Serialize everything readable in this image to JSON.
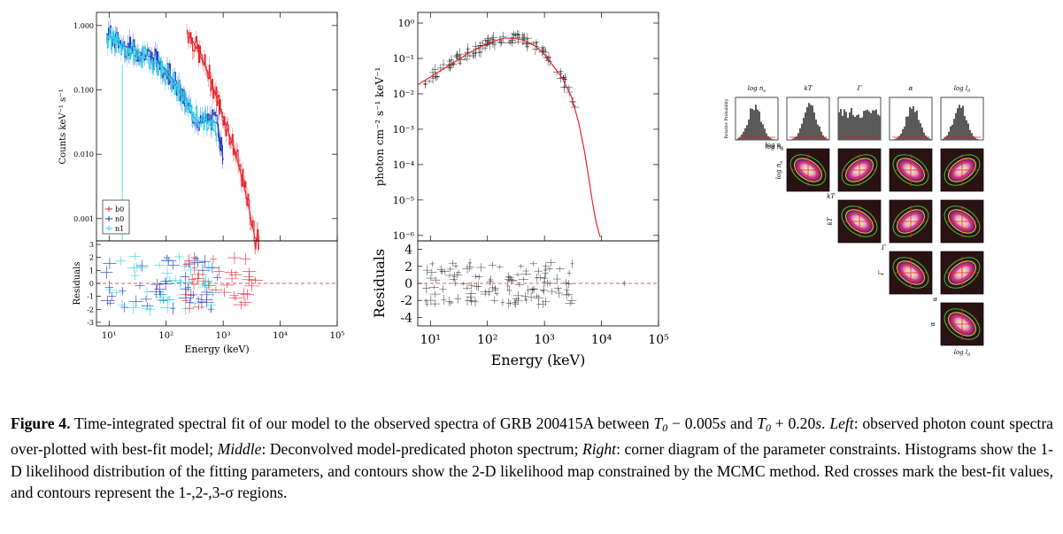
{
  "caption": {
    "label": "Figure 4.",
    "lead": "Time-integrated spectral fit of our model to the observed spectra of GRB 200415A between ",
    "t0a": "T",
    "t0a_sub": "0",
    "t0a_rest": " − 0.005",
    "s1": "s",
    "and": " and ",
    "t0b": "T",
    "t0b_sub": "0",
    "t0b_rest": " + 0.20",
    "s2": "s",
    "period": ".",
    "left_label": "Left",
    "left_text": ": observed photon count spectra over-plotted with best-fit model; ",
    "middle_label": "Middle",
    "middle_text": ": Deconvolved model-predicated photon spectrum; ",
    "right_label": "Right",
    "right_text": ": corner diagram of the parameter constraints. Histograms show the 1-D likelihood distribution of the fitting parameters, and contours show the 2-D likelihood map constrained by the MCMC method. Red crosses mark the best-fit values, and contours represent the 1-,2-,3-σ regions."
  },
  "chart_data": [
    {
      "type": "line",
      "panel": "left-counts",
      "ylabel": "Counts keV⁻¹ s⁻¹",
      "xscale": "log",
      "yscale": "log",
      "xlim": [
        6,
        100000
      ],
      "ylim": [
        0.00045,
        1.6
      ],
      "yticks": [
        "1.000",
        "0.100",
        "0.010",
        "0.001"
      ],
      "legend": [
        "b0",
        "n0",
        "n1"
      ],
      "legend_position": "bottom-left",
      "series": [
        {
          "name": "b0",
          "color": "#e8232a",
          "x": [
            230,
            300,
            400,
            550,
            700,
            900,
            1200,
            1600,
            2100,
            2800,
            3600,
            4300
          ],
          "y": [
            0.85,
            0.55,
            0.33,
            0.18,
            0.095,
            0.05,
            0.024,
            0.011,
            0.0045,
            0.0015,
            0.0005,
            0.00045
          ]
        },
        {
          "name": "n0",
          "color": "#2030b8",
          "x": [
            9,
            12,
            16,
            22,
            30,
            40,
            55,
            75,
            100,
            140,
            200,
            280,
            400,
            560,
            800,
            1000
          ],
          "y": [
            0.75,
            0.62,
            0.52,
            0.45,
            0.4,
            0.36,
            0.32,
            0.27,
            0.2,
            0.13,
            0.07,
            0.042,
            0.03,
            0.035,
            0.03,
            0.008
          ]
        },
        {
          "name": "n1",
          "color": "#30d0e8",
          "x": [
            9,
            12,
            16,
            22,
            30,
            40,
            55,
            75,
            100,
            140,
            200,
            280,
            400,
            560,
            800
          ],
          "y": [
            0.7,
            0.55,
            0.47,
            0.4,
            0.35,
            0.32,
            0.28,
            0.24,
            0.18,
            0.12,
            0.07,
            0.045,
            0.035,
            0.03,
            0.02
          ]
        }
      ]
    },
    {
      "type": "scatter",
      "panel": "left-residuals",
      "xlabel": "Energy (keV)",
      "ylabel": "Residuals",
      "xscale": "log",
      "xlim": [
        6,
        100000
      ],
      "ylim": [
        -3,
        3
      ],
      "yticks": [
        "3",
        "2",
        "1",
        "0",
        "-1",
        "-2",
        "-3"
      ],
      "xticks": [
        "10¹",
        "10²",
        "10³",
        "10⁴",
        "10⁵"
      ]
    },
    {
      "type": "line",
      "panel": "middle-photon",
      "ylabel": "photon cm⁻² s⁻¹ keV⁻¹",
      "xscale": "log",
      "yscale": "log",
      "xlim": [
        6,
        100000
      ],
      "ylim": [
        7e-07,
        2
      ],
      "yticks": [
        "10⁰",
        "10⁻¹",
        "10⁻²",
        "10⁻³",
        "10⁻⁴",
        "10⁻⁵",
        "10⁻⁶"
      ],
      "series": [
        {
          "name": "model",
          "color": "#e8232a",
          "x": [
            6,
            10,
            20,
            50,
            100,
            200,
            400,
            700,
            1000,
            2000,
            3000,
            4000,
            5000,
            6000,
            7000,
            8000,
            9000,
            9500
          ],
          "y": [
            0.018,
            0.03,
            0.06,
            0.15,
            0.27,
            0.38,
            0.35,
            0.22,
            0.13,
            0.03,
            0.008,
            0.0015,
            0.00025,
            4e-05,
            8e-06,
            2.5e-06,
            1.2e-06,
            9e-07
          ]
        }
      ]
    },
    {
      "type": "scatter",
      "panel": "middle-residuals",
      "xlabel": "Energy (keV)",
      "ylabel": "Residuals",
      "xscale": "log",
      "xlim": [
        6,
        100000
      ],
      "ylim": [
        -5,
        5
      ],
      "yticks": [
        "4",
        "2",
        "0",
        "-2",
        "-4"
      ],
      "xticks": [
        "10¹",
        "10²",
        "10³",
        "10⁴",
        "10⁵"
      ]
    },
    {
      "type": "heatmap",
      "panel": "corner",
      "parameters": [
        "log n",
        "kT",
        "Γ",
        "α",
        "log l"
      ],
      "param_subs": [
        "e",
        "",
        "",
        "",
        "0"
      ],
      "hist_ylabel": "Relative Probability"
    }
  ]
}
